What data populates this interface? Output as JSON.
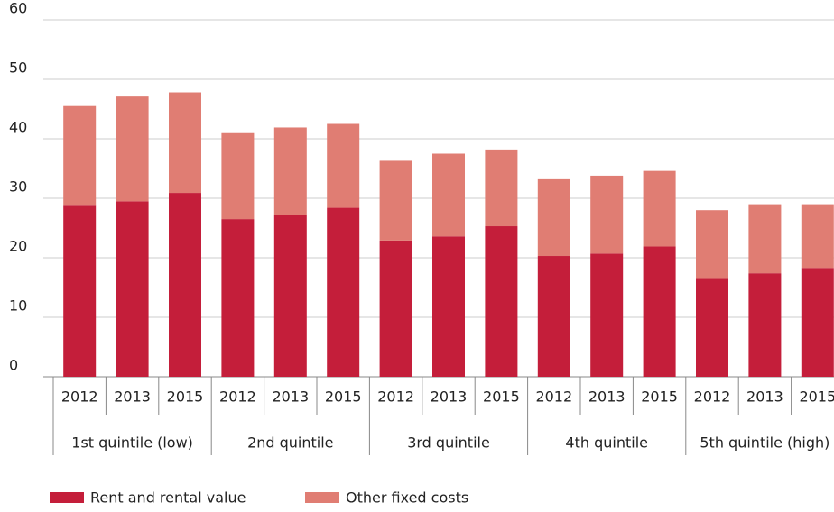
{
  "chart_data": {
    "type": "stacked-bar",
    "groups": [
      {
        "label": "1st quintile (low)",
        "categories": [
          "2012",
          "2013",
          "2015"
        ]
      },
      {
        "label": "2nd quintile",
        "categories": [
          "2012",
          "2013",
          "2015"
        ]
      },
      {
        "label": "3rd quintile",
        "categories": [
          "2012",
          "2013",
          "2015"
        ]
      },
      {
        "label": "4th quintile",
        "categories": [
          "2012",
          "2013",
          "2015"
        ]
      },
      {
        "label": "5th quintile (high)",
        "categories": [
          "2012",
          "2013",
          "2015"
        ]
      }
    ],
    "series": [
      {
        "name": "Rent and rental value",
        "color": "#c41e3a",
        "values": [
          28.9,
          29.5,
          30.9,
          26.5,
          27.2,
          28.4,
          22.9,
          23.6,
          25.3,
          20.3,
          20.7,
          21.9,
          16.6,
          17.4,
          18.3
        ]
      },
      {
        "name": "Other fixed costs",
        "color": "#e07d73",
        "values": [
          16.6,
          17.6,
          16.9,
          14.6,
          14.7,
          14.1,
          13.4,
          13.9,
          12.9,
          12.9,
          13.1,
          12.7,
          11.4,
          11.6,
          10.7
        ]
      }
    ],
    "ylim": [
      0,
      60
    ],
    "yticks": [
      0,
      10,
      20,
      30,
      40,
      50,
      60
    ],
    "grid": true
  }
}
